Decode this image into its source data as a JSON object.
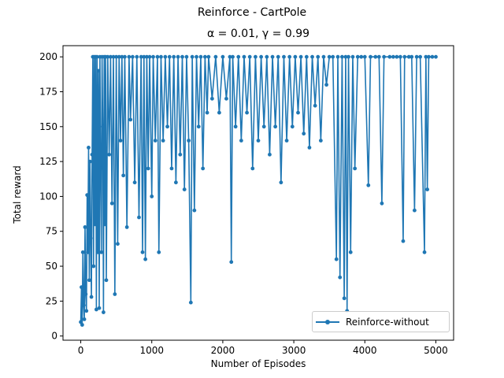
{
  "chart_data": {
    "type": "line",
    "suptitle": "Reinforce - CartPole",
    "title": "α = 0.01, γ = 0.99",
    "xlabel": "Number of Episodes",
    "ylabel": "Total reward",
    "xlim": [
      -250,
      5250
    ],
    "ylim": [
      -3,
      208
    ],
    "xticks": [
      0,
      1000,
      2000,
      3000,
      4000,
      5000
    ],
    "yticks": [
      0,
      25,
      50,
      75,
      100,
      125,
      150,
      175,
      200
    ],
    "grid": false,
    "legend_position": "lower right",
    "series": [
      {
        "name": "Reinforce-without",
        "color": "#1f77b4",
        "marker": "circle",
        "points": [
          [
            0,
            10
          ],
          [
            10,
            35
          ],
          [
            20,
            8
          ],
          [
            30,
            60
          ],
          [
            40,
            22
          ],
          [
            50,
            12
          ],
          [
            60,
            78
          ],
          [
            70,
            30
          ],
          [
            80,
            18
          ],
          [
            90,
            101
          ],
          [
            100,
            60
          ],
          [
            110,
            135
          ],
          [
            120,
            40
          ],
          [
            130,
            125
          ],
          [
            140,
            70
          ],
          [
            150,
            28
          ],
          [
            160,
            130
          ],
          [
            170,
            200
          ],
          [
            180,
            50
          ],
          [
            190,
            200
          ],
          [
            200,
            80
          ],
          [
            210,
            200
          ],
          [
            220,
            19
          ],
          [
            230,
            200
          ],
          [
            240,
            60
          ],
          [
            250,
            190
          ],
          [
            260,
            20
          ],
          [
            270,
            200
          ],
          [
            280,
            120
          ],
          [
            290,
            60
          ],
          [
            300,
            200
          ],
          [
            310,
            150
          ],
          [
            320,
            17
          ],
          [
            330,
            200
          ],
          [
            340,
            80
          ],
          [
            350,
            200
          ],
          [
            360,
            40
          ],
          [
            380,
            200
          ],
          [
            400,
            130
          ],
          [
            420,
            200
          ],
          [
            440,
            95
          ],
          [
            460,
            200
          ],
          [
            480,
            30
          ],
          [
            500,
            200
          ],
          [
            520,
            66
          ],
          [
            540,
            200
          ],
          [
            560,
            140
          ],
          [
            580,
            200
          ],
          [
            600,
            115
          ],
          [
            620,
            200
          ],
          [
            650,
            78
          ],
          [
            680,
            200
          ],
          [
            700,
            155
          ],
          [
            730,
            200
          ],
          [
            760,
            110
          ],
          [
            790,
            200
          ],
          [
            820,
            85
          ],
          [
            850,
            200
          ],
          [
            870,
            60
          ],
          [
            890,
            200
          ],
          [
            910,
            55
          ],
          [
            930,
            200
          ],
          [
            950,
            120
          ],
          [
            970,
            200
          ],
          [
            1000,
            100
          ],
          [
            1020,
            200
          ],
          [
            1050,
            140
          ],
          [
            1080,
            200
          ],
          [
            1100,
            60
          ],
          [
            1130,
            200
          ],
          [
            1160,
            140
          ],
          [
            1190,
            200
          ],
          [
            1220,
            150
          ],
          [
            1250,
            200
          ],
          [
            1280,
            120
          ],
          [
            1310,
            200
          ],
          [
            1340,
            110
          ],
          [
            1370,
            200
          ],
          [
            1400,
            130
          ],
          [
            1430,
            200
          ],
          [
            1460,
            105
          ],
          [
            1490,
            200
          ],
          [
            1520,
            140
          ],
          [
            1550,
            24
          ],
          [
            1570,
            200
          ],
          [
            1600,
            90
          ],
          [
            1630,
            200
          ],
          [
            1660,
            150
          ],
          [
            1690,
            200
          ],
          [
            1720,
            120
          ],
          [
            1750,
            200
          ],
          [
            1780,
            160
          ],
          [
            1800,
            200
          ],
          [
            1850,
            170
          ],
          [
            1900,
            200
          ],
          [
            1950,
            160
          ],
          [
            2000,
            200
          ],
          [
            2050,
            170
          ],
          [
            2100,
            200
          ],
          [
            2120,
            53
          ],
          [
            2140,
            200
          ],
          [
            2180,
            150
          ],
          [
            2220,
            200
          ],
          [
            2260,
            140
          ],
          [
            2300,
            200
          ],
          [
            2340,
            160
          ],
          [
            2380,
            200
          ],
          [
            2420,
            120
          ],
          [
            2460,
            200
          ],
          [
            2500,
            140
          ],
          [
            2540,
            200
          ],
          [
            2580,
            150
          ],
          [
            2620,
            200
          ],
          [
            2660,
            130
          ],
          [
            2700,
            200
          ],
          [
            2740,
            150
          ],
          [
            2780,
            200
          ],
          [
            2820,
            110
          ],
          [
            2860,
            200
          ],
          [
            2900,
            140
          ],
          [
            2940,
            200
          ],
          [
            2980,
            150
          ],
          [
            3020,
            200
          ],
          [
            3060,
            160
          ],
          [
            3100,
            200
          ],
          [
            3140,
            145
          ],
          [
            3180,
            200
          ],
          [
            3220,
            135
          ],
          [
            3260,
            200
          ],
          [
            3300,
            165
          ],
          [
            3340,
            200
          ],
          [
            3380,
            140
          ],
          [
            3420,
            200
          ],
          [
            3460,
            180
          ],
          [
            3500,
            200
          ],
          [
            3550,
            200
          ],
          [
            3600,
            55
          ],
          [
            3620,
            200
          ],
          [
            3650,
            42
          ],
          [
            3680,
            200
          ],
          [
            3710,
            27
          ],
          [
            3730,
            200
          ],
          [
            3750,
            18
          ],
          [
            3770,
            200
          ],
          [
            3800,
            60
          ],
          [
            3830,
            200
          ],
          [
            3860,
            120
          ],
          [
            3900,
            200
          ],
          [
            3950,
            200
          ],
          [
            4000,
            200
          ],
          [
            4050,
            108
          ],
          [
            4080,
            200
          ],
          [
            4150,
            200
          ],
          [
            4200,
            200
          ],
          [
            4240,
            95
          ],
          [
            4270,
            200
          ],
          [
            4350,
            200
          ],
          [
            4400,
            200
          ],
          [
            4450,
            200
          ],
          [
            4500,
            200
          ],
          [
            4540,
            68
          ],
          [
            4560,
            200
          ],
          [
            4620,
            200
          ],
          [
            4660,
            200
          ],
          [
            4700,
            90
          ],
          [
            4730,
            200
          ],
          [
            4780,
            200
          ],
          [
            4840,
            60
          ],
          [
            4860,
            200
          ],
          [
            4880,
            105
          ],
          [
            4900,
            200
          ],
          [
            4950,
            200
          ],
          [
            5000,
            200
          ]
        ]
      }
    ]
  }
}
